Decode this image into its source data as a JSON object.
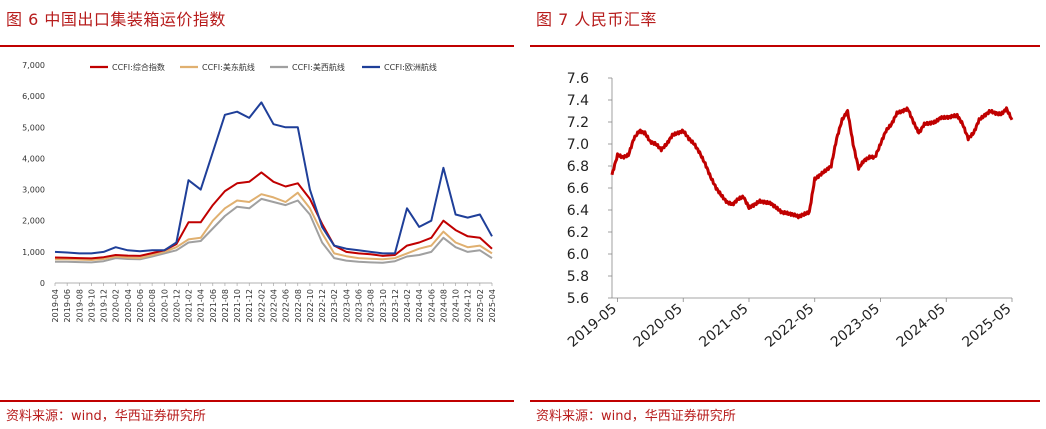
{
  "left": {
    "title": "图 6    中国出口集装箱运价指数",
    "source": "资料来源：wind，华西证券研究所"
  },
  "right": {
    "title": "图 7    人民币汇率",
    "source": "资料来源：wind，华西证券研究所"
  },
  "colors": {
    "accent": "#c00000",
    "ccfi": "#c00000",
    "us_west": "#e0b070",
    "us_east": "#a0a0a0",
    "europe": "#1f3f99",
    "fx": "#c00000"
  },
  "chart_data": [
    {
      "type": "line",
      "title": "",
      "xlabel": "",
      "ylabel": "",
      "ylim": [
        0,
        7000
      ],
      "yticks": [
        "0",
        "1,000",
        "2,000",
        "3,000",
        "4,000",
        "5,000",
        "6,000",
        "7,000"
      ],
      "grid": false,
      "legend": "top",
      "categories": [
        "2019-04",
        "2019-06",
        "2019-08",
        "2019-10",
        "2019-12",
        "2020-02",
        "2020-04",
        "2020-06",
        "2020-08",
        "2020-10",
        "2020-12",
        "2021-02",
        "2021-04",
        "2021-06",
        "2021-08",
        "2021-10",
        "2021-12",
        "2022-02",
        "2022-04",
        "2022-06",
        "2022-08",
        "2022-10",
        "2022-12",
        "2023-02",
        "2023-04",
        "2023-06",
        "2023-08",
        "2023-10",
        "2023-12",
        "2024-02",
        "2024-04",
        "2024-06",
        "2024-08",
        "2024-10",
        "2024-12",
        "2025-02",
        "2025-04"
      ],
      "series": [
        {
          "name": "CCFI:综合指数",
          "values": [
            820,
            810,
            800,
            790,
            830,
            900,
            880,
            870,
            960,
            1050,
            1250,
            1950,
            1950,
            2500,
            2950,
            3200,
            3250,
            3550,
            3250,
            3100,
            3200,
            2700,
            1900,
            1200,
            1000,
            950,
            920,
            870,
            900,
            1200,
            1300,
            1450,
            2000,
            1700,
            1500,
            1450,
            1100
          ]
        },
        {
          "name": "CCFI:美东航线",
          "values": [
            760,
            760,
            750,
            740,
            770,
            850,
            820,
            800,
            900,
            1000,
            1150,
            1400,
            1450,
            2000,
            2400,
            2650,
            2600,
            2850,
            2750,
            2600,
            2900,
            2400,
            1600,
            950,
            860,
            800,
            780,
            760,
            800,
            950,
            1100,
            1200,
            1650,
            1300,
            1150,
            1200,
            950
          ]
        },
        {
          "name": "CCFI:美西航线",
          "values": [
            680,
            680,
            670,
            660,
            700,
            800,
            770,
            760,
            850,
            950,
            1050,
            1300,
            1350,
            1750,
            2150,
            2450,
            2400,
            2700,
            2600,
            2500,
            2650,
            2200,
            1300,
            800,
            720,
            680,
            660,
            650,
            700,
            850,
            900,
            1000,
            1450,
            1150,
            1000,
            1050,
            800
          ]
        },
        {
          "name": "CCFI:欧洲航线",
          "values": [
            1000,
            980,
            950,
            950,
            1000,
            1150,
            1050,
            1020,
            1050,
            1050,
            1300,
            3300,
            3000,
            4200,
            5400,
            5500,
            5300,
            5800,
            5100,
            5000,
            5000,
            3000,
            1800,
            1200,
            1100,
            1050,
            1000,
            950,
            950,
            2400,
            1800,
            2000,
            3700,
            2200,
            2100,
            2200,
            1500
          ]
        }
      ]
    },
    {
      "type": "line",
      "title": "",
      "xlabel": "",
      "ylabel": "",
      "ylim": [
        5.6,
        7.6
      ],
      "yticks": [
        "5.6",
        "5.8",
        "6.0",
        "6.2",
        "6.4",
        "6.6",
        "6.8",
        "7.0",
        "7.2",
        "7.4",
        "7.6"
      ],
      "grid": false,
      "legend": "none",
      "xtick_labels": [
        "2019-05",
        "2020-05",
        "2021-05",
        "2022-05",
        "2023-05",
        "2024-05",
        "2025-05"
      ],
      "series": [
        {
          "x": [
            "2019-04",
            "2019-05",
            "2019-06",
            "2019-07",
            "2019-08",
            "2019-09",
            "2019-10",
            "2019-11",
            "2019-12",
            "2020-01",
            "2020-02",
            "2020-03",
            "2020-04",
            "2020-05",
            "2020-06",
            "2020-07",
            "2020-08",
            "2020-09",
            "2020-10",
            "2020-11",
            "2020-12",
            "2021-01",
            "2021-02",
            "2021-03",
            "2021-04",
            "2021-05",
            "2021-06",
            "2021-07",
            "2021-08",
            "2021-09",
            "2021-10",
            "2021-11",
            "2021-12",
            "2022-01",
            "2022-02",
            "2022-03",
            "2022-04",
            "2022-05",
            "2022-06",
            "2022-07",
            "2022-08",
            "2022-09",
            "2022-10",
            "2022-11",
            "2022-12",
            "2023-01",
            "2023-02",
            "2023-03",
            "2023-04",
            "2023-05",
            "2023-06",
            "2023-07",
            "2023-08",
            "2023-09",
            "2023-10",
            "2023-11",
            "2023-12",
            "2024-01",
            "2024-02",
            "2024-03",
            "2024-04",
            "2024-05",
            "2024-06",
            "2024-07",
            "2024-08",
            "2024-09",
            "2024-10",
            "2024-11",
            "2024-12",
            "2025-01",
            "2025-02",
            "2025-03",
            "2025-04",
            "2025-05"
          ],
          "values": [
            6.72,
            6.9,
            6.88,
            6.9,
            7.05,
            7.12,
            7.1,
            7.02,
            7.0,
            6.95,
            7.0,
            7.08,
            7.1,
            7.12,
            7.05,
            7.0,
            6.92,
            6.82,
            6.7,
            6.6,
            6.53,
            6.47,
            6.45,
            6.5,
            6.52,
            6.42,
            6.45,
            6.48,
            6.47,
            6.46,
            6.42,
            6.38,
            6.37,
            6.36,
            6.34,
            6.36,
            6.38,
            6.68,
            6.72,
            6.76,
            6.8,
            7.05,
            7.22,
            7.3,
            7.0,
            6.78,
            6.85,
            6.88,
            6.88,
            7.0,
            7.12,
            7.18,
            7.28,
            7.3,
            7.32,
            7.2,
            7.1,
            7.18,
            7.19,
            7.2,
            7.24,
            7.24,
            7.25,
            7.26,
            7.18,
            7.05,
            7.1,
            7.22,
            7.26,
            7.3,
            7.28,
            7.27,
            7.32,
            7.22
          ]
        }
      ]
    }
  ]
}
